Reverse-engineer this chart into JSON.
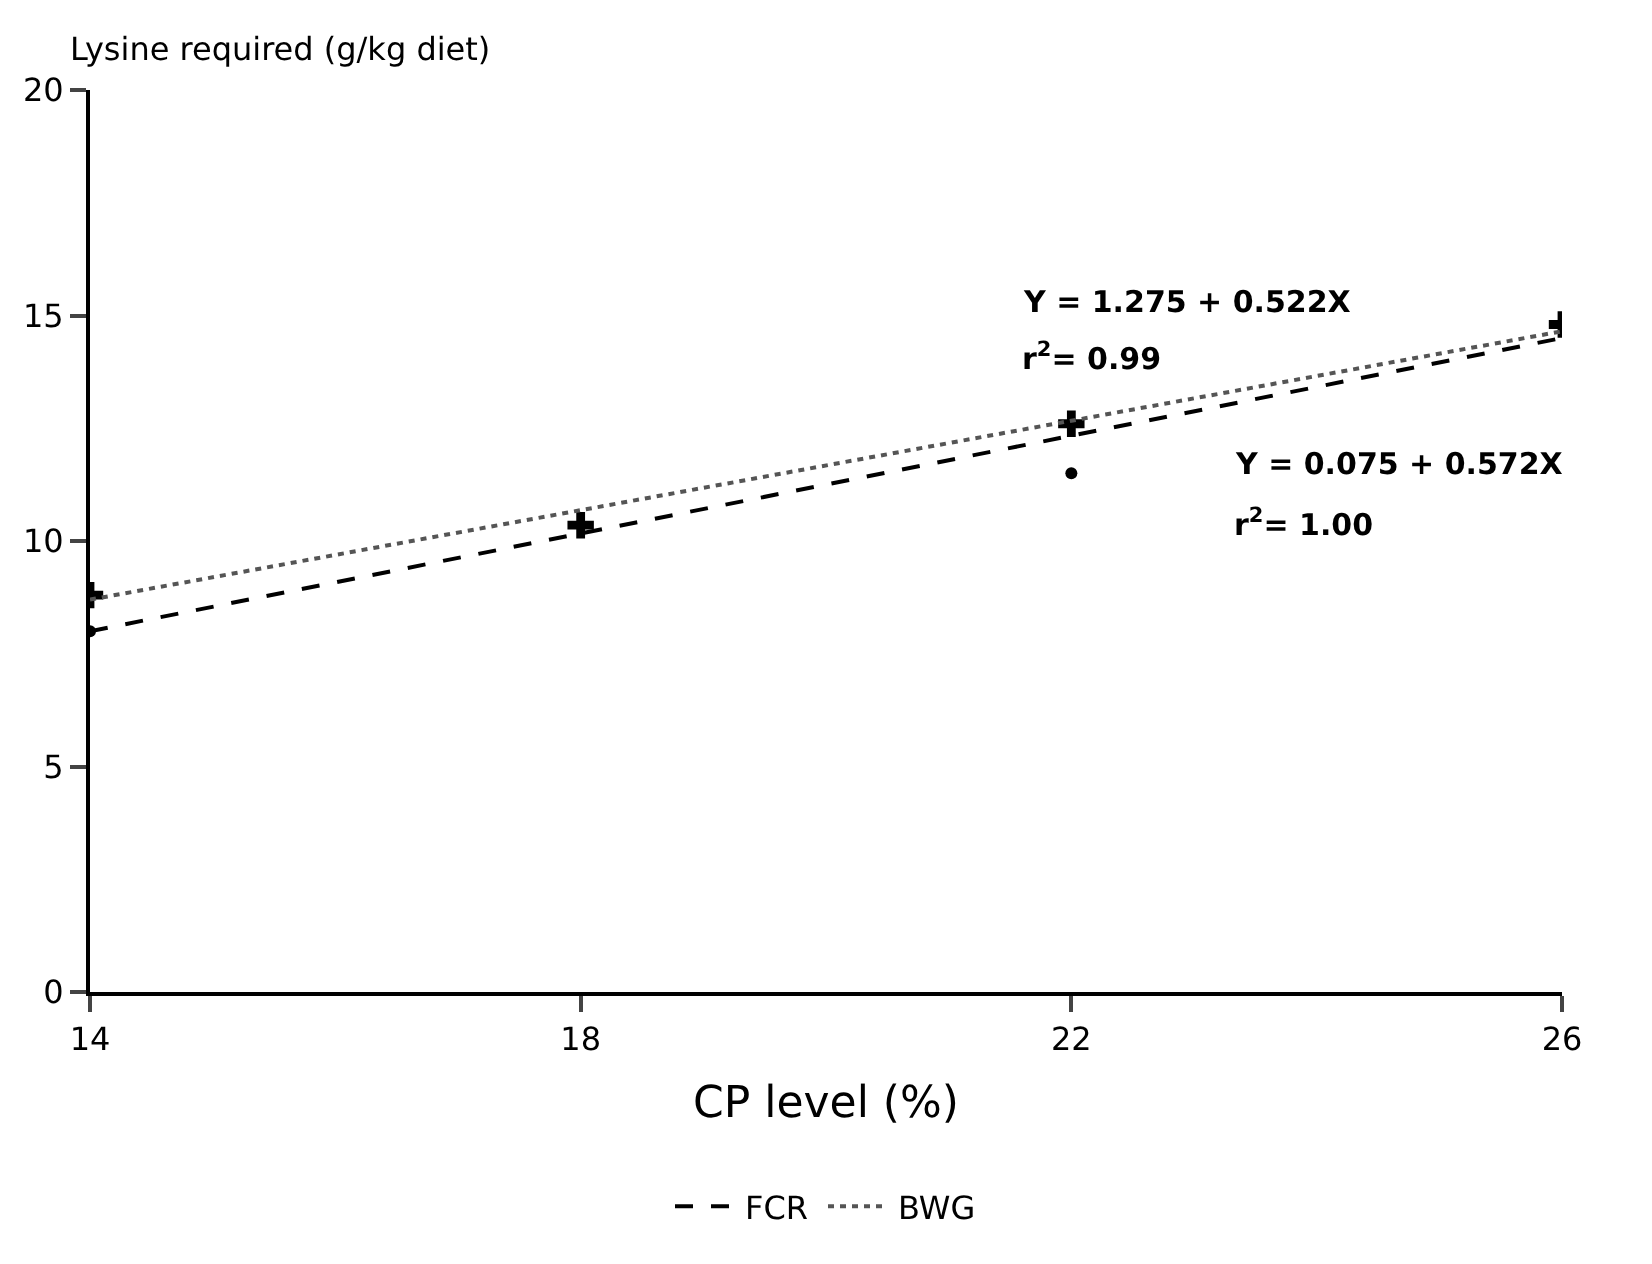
{
  "chart_data": {
    "type": "scatter",
    "xlabel": "CP level (%)",
    "ylabel": "Lysine required (g/kg diet)",
    "xlim": [
      14,
      26
    ],
    "xticks": [
      14,
      18,
      22,
      26
    ],
    "ylim": [
      0,
      20
    ],
    "yticks": [
      0,
      5,
      10,
      15,
      20
    ],
    "grid": false,
    "legend": "bottom",
    "series": [
      {
        "marker": "circle",
        "color": "#000000",
        "x": [
          14,
          18,
          22
        ],
        "values": [
          8.0,
          null,
          11.5
        ]
      },
      {
        "marker": "cross",
        "color": "#000000",
        "x": [
          14,
          18,
          22,
          26
        ],
        "values": [
          8.8,
          10.35,
          12.6,
          14.8
        ]
      },
      {
        "type": "line",
        "name": "FCR",
        "line_style": "dashed",
        "marker": "none",
        "color": "#000000",
        "x": [
          14,
          26
        ],
        "values": [
          8.0,
          14.5
        ]
      },
      {
        "type": "line",
        "name": "BWG",
        "line_style": "dotted",
        "marker": "none",
        "color": "#555555",
        "x": [
          14,
          26
        ],
        "values": [
          8.7,
          14.65
        ]
      }
    ],
    "annotations": [
      "Y = 1.275 + 0.522X",
      "r$^{2}$= 0.99",
      "Y = 0.075 + 0.572X",
      "r$^{2}$= 1.00"
    ]
  }
}
